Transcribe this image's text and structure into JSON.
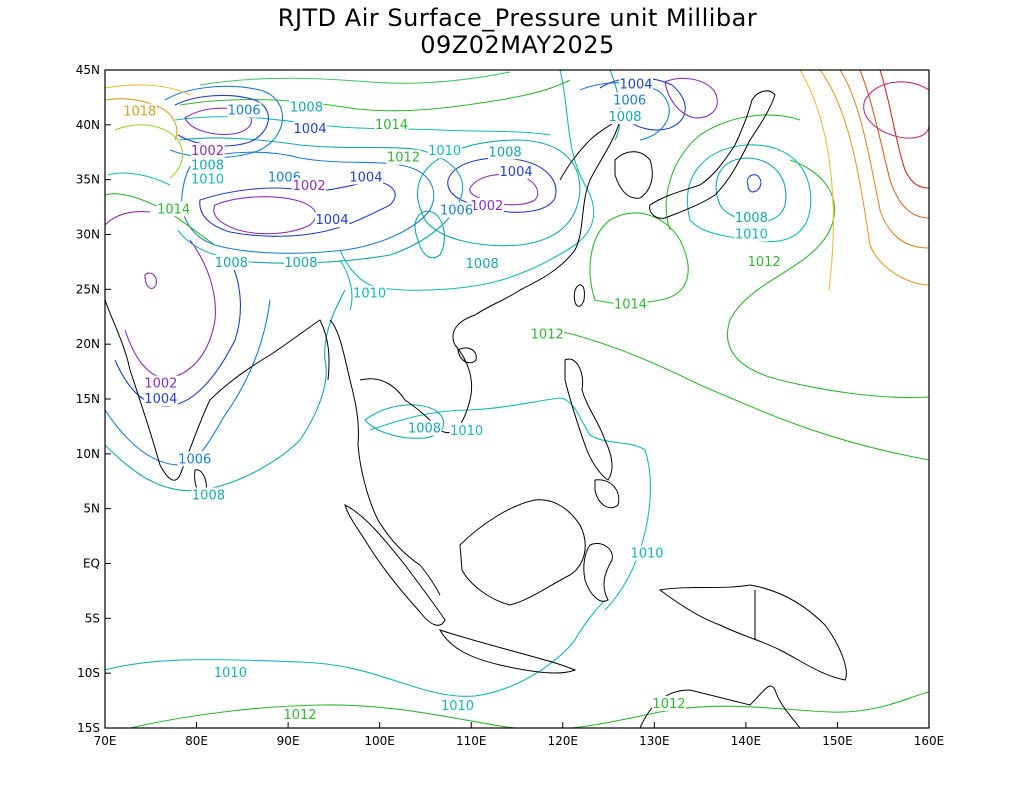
{
  "title": "RJTD Air Surface_Pressure unit Millibar",
  "subtitle": "09Z02MAY2025",
  "map": {
    "lon_range": [
      70,
      160
    ],
    "lat_range": [
      -15,
      45
    ],
    "x_ticks": [
      "70E",
      "80E",
      "90E",
      "100E",
      "110E",
      "120E",
      "130E",
      "140E",
      "150E",
      "160E"
    ],
    "y_ticks": [
      "45N",
      "40N",
      "35N",
      "30N",
      "25N",
      "20N",
      "15N",
      "10N",
      "5N",
      "EQ",
      "5S",
      "10S",
      "15S"
    ],
    "contour_interval_mb": 2,
    "contour_labels": [
      {
        "text": "1004",
        "color": "#1f3fd0",
        "lon": 128.0,
        "lat": 43.7
      },
      {
        "text": "1006",
        "color": "#1a7fd6",
        "lon": 127.3,
        "lat": 42.2
      },
      {
        "text": "1008",
        "color": "#14a8b0",
        "lon": 126.8,
        "lat": 40.7
      },
      {
        "text": "1006",
        "color": "#1a7fd6",
        "lon": 85.2,
        "lat": 41.3
      },
      {
        "text": "1008",
        "color": "#14a8b0",
        "lon": 92.0,
        "lat": 41.6
      },
      {
        "text": "1004",
        "color": "#1f3fd0",
        "lon": 92.4,
        "lat": 39.6
      },
      {
        "text": "1014",
        "color": "#2fb82f",
        "lon": 101.3,
        "lat": 40.0
      },
      {
        "text": "1010",
        "color": "#14b8b8",
        "lon": 107.1,
        "lat": 37.6
      },
      {
        "text": "1012",
        "color": "#2fb82f",
        "lon": 102.6,
        "lat": 37.0
      },
      {
        "text": "1008",
        "color": "#14a8b0",
        "lon": 113.7,
        "lat": 37.5
      },
      {
        "text": "1004",
        "color": "#1f3fd0",
        "lon": 114.9,
        "lat": 35.7
      },
      {
        "text": "1002",
        "color": "#8a2fc0",
        "lon": 111.7,
        "lat": 32.6
      },
      {
        "text": "1006",
        "color": "#1a7fd6",
        "lon": 108.4,
        "lat": 32.2
      },
      {
        "text": "1004",
        "color": "#1f3fd0",
        "lon": 98.5,
        "lat": 35.2
      },
      {
        "text": "1004",
        "color": "#1f3fd0",
        "lon": 94.8,
        "lat": 31.3
      },
      {
        "text": "1006",
        "color": "#1a7fd6",
        "lon": 89.6,
        "lat": 35.2
      },
      {
        "text": "1002",
        "color": "#8a2fc0",
        "lon": 92.3,
        "lat": 34.4
      },
      {
        "text": "1002",
        "color": "#8a2fc0",
        "lon": 81.2,
        "lat": 37.6
      },
      {
        "text": "1008",
        "color": "#14a8b0",
        "lon": 81.2,
        "lat": 36.3
      },
      {
        "text": "1010",
        "color": "#14b8b8",
        "lon": 81.2,
        "lat": 35.0
      },
      {
        "text": "1014",
        "color": "#2fb82f",
        "lon": 77.5,
        "lat": 32.3
      },
      {
        "text": "1018",
        "color": "#d0a020",
        "lon": 73.8,
        "lat": 41.2
      },
      {
        "text": "1008",
        "color": "#14a8b0",
        "lon": 83.8,
        "lat": 27.4
      },
      {
        "text": "1008",
        "color": "#14a8b0",
        "lon": 91.4,
        "lat": 27.4
      },
      {
        "text": "1008",
        "color": "#14a8b0",
        "lon": 111.2,
        "lat": 27.3
      },
      {
        "text": "1010",
        "color": "#14b8b8",
        "lon": 98.9,
        "lat": 24.6
      },
      {
        "text": "1012",
        "color": "#2fb82f",
        "lon": 118.3,
        "lat": 20.9
      },
      {
        "text": "1014",
        "color": "#2fb82f",
        "lon": 127.4,
        "lat": 23.6
      },
      {
        "text": "1008",
        "color": "#14a8b0",
        "lon": 140.6,
        "lat": 31.5
      },
      {
        "text": "1010",
        "color": "#14b8b8",
        "lon": 140.6,
        "lat": 30.0
      },
      {
        "text": "1012",
        "color": "#2fb82f",
        "lon": 142.0,
        "lat": 27.5
      },
      {
        "text": "1002",
        "color": "#8a2fc0",
        "lon": 76.1,
        "lat": 16.4
      },
      {
        "text": "1004",
        "color": "#1f3fd0",
        "lon": 76.1,
        "lat": 15.0
      },
      {
        "text": "1006",
        "color": "#1a7fd6",
        "lon": 79.8,
        "lat": 9.5
      },
      {
        "text": "1008",
        "color": "#14a8b0",
        "lon": 81.3,
        "lat": 6.2
      },
      {
        "text": "1008",
        "color": "#14a8b0",
        "lon": 104.9,
        "lat": 12.3
      },
      {
        "text": "1010",
        "color": "#14b8b8",
        "lon": 109.5,
        "lat": 12.1
      },
      {
        "text": "1010",
        "color": "#14b8b8",
        "lon": 129.2,
        "lat": 0.9
      },
      {
        "text": "1010",
        "color": "#14b8b8",
        "lon": 83.7,
        "lat": -10.0
      },
      {
        "text": "1010",
        "color": "#14b8b8",
        "lon": 108.5,
        "lat": -13.0
      },
      {
        "text": "1012",
        "color": "#2fb82f",
        "lon": 91.3,
        "lat": -13.8
      },
      {
        "text": "1012",
        "color": "#2fb82f",
        "lon": 131.6,
        "lat": -12.8
      }
    ]
  }
}
